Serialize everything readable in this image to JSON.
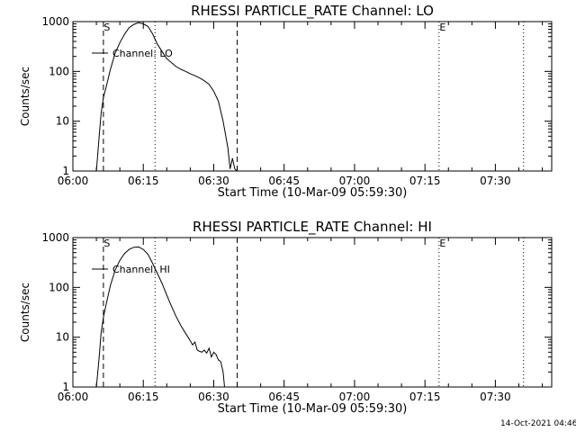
{
  "chart_data": [
    {
      "type": "line",
      "title": "RHESSI PARTICLE_RATE Channel: LO",
      "xlabel": "Start Time (10-Mar-09 05:59:30)",
      "ylabel": "Counts/sec",
      "y_scale": "log",
      "ylim": [
        1,
        1000
      ],
      "xlim": [
        "06:00",
        "07:42"
      ],
      "x_ticks": [
        "06:00",
        "06:15",
        "06:30",
        "06:45",
        "07:00",
        "07:15",
        "07:30"
      ],
      "y_ticks": [
        "1",
        "10",
        "100",
        "1000"
      ],
      "legend": {
        "label": "Channel: LO",
        "position": "top-left"
      },
      "markers": [
        {
          "time": "06:06.5",
          "label": "S",
          "style": "dashed"
        },
        {
          "time": "06:17.5",
          "label": "",
          "style": "dotted"
        },
        {
          "time": "06:35",
          "label": "",
          "style": "dashed"
        },
        {
          "time": "07:18",
          "label": "E",
          "style": "dotted"
        },
        {
          "time": "07:36",
          "label": "",
          "style": "dotted"
        }
      ],
      "series": [
        {
          "name": "Channel: LO",
          "x": [
            "06:05.0",
            "06:05.6",
            "06:06.0",
            "06:06.5",
            "06:07.0",
            "06:07.5",
            "06:08.0",
            "06:09.0",
            "06:10.0",
            "06:11.0",
            "06:12.0",
            "06:13.0",
            "06:14.0",
            "06:15.0",
            "06:16.0",
            "06:17.0",
            "06:18.0",
            "06:19.0",
            "06:20.0",
            "06:21.0",
            "06:22.0",
            "06:23.0",
            "06:24.0",
            "06:25.0",
            "06:26.0",
            "06:27.0",
            "06:28.0",
            "06:29.0",
            "06:30.0",
            "06:31.0",
            "06:32.0",
            "06:33.0",
            "06:33.5",
            "06:34.0",
            "06:34.5",
            "06:35.0"
          ],
          "y": [
            1,
            5,
            14,
            30,
            45,
            70,
            110,
            230,
            380,
            560,
            760,
            880,
            950,
            900,
            800,
            560,
            350,
            250,
            180,
            150,
            125,
            110,
            100,
            90,
            82,
            74,
            65,
            55,
            40,
            25,
            10,
            3,
            1.1,
            1.8,
            1.1,
            1
          ]
        }
      ]
    },
    {
      "type": "line",
      "title": "RHESSI PARTICLE_RATE Channel: HI",
      "xlabel": "Start Time (10-Mar-09 05:59:30)",
      "ylabel": "Counts/sec",
      "y_scale": "log",
      "ylim": [
        1,
        1000
      ],
      "xlim": [
        "06:00",
        "07:42"
      ],
      "x_ticks": [
        "06:00",
        "06:15",
        "06:30",
        "06:45",
        "07:00",
        "07:15",
        "07:30"
      ],
      "y_ticks": [
        "1",
        "10",
        "100",
        "1000"
      ],
      "legend": {
        "label": "Channel: HI",
        "position": "top-left"
      },
      "markers": [
        {
          "time": "06:06.5",
          "label": "S",
          "style": "dashed"
        },
        {
          "time": "06:17.5",
          "label": "",
          "style": "dotted"
        },
        {
          "time": "06:35",
          "label": "",
          "style": "dashed"
        },
        {
          "time": "07:18",
          "label": "E",
          "style": "dotted"
        },
        {
          "time": "07:36",
          "label": "",
          "style": "dotted"
        }
      ],
      "series": [
        {
          "name": "Channel: HI",
          "x": [
            "06:05.0",
            "06:05.6",
            "06:06.0",
            "06:06.5",
            "06:07.0",
            "06:08.0",
            "06:09.0",
            "06:10.0",
            "06:11.0",
            "06:12.0",
            "06:13.0",
            "06:14.0",
            "06:15.0",
            "06:16.0",
            "06:17.0",
            "06:18.0",
            "06:19.0",
            "06:20.0",
            "06:21.0",
            "06:22.0",
            "06:23.0",
            "06:24.0",
            "06:25.0",
            "06:25.5",
            "06:26.0",
            "06:26.5",
            "06:27.0",
            "06:27.5",
            "06:28.0",
            "06:28.5",
            "06:29.0",
            "06:29.5",
            "06:30.0",
            "06:30.5",
            "06:31.0",
            "06:31.5",
            "06:32.0",
            "06:32.3"
          ],
          "y": [
            1,
            4,
            12,
            25,
            42,
            110,
            220,
            350,
            480,
            580,
            640,
            650,
            580,
            460,
            300,
            190,
            120,
            70,
            42,
            26,
            17,
            12,
            8.5,
            7,
            8,
            5.5,
            5.2,
            5,
            5.5,
            4.8,
            6,
            4,
            5,
            4.5,
            3.5,
            3.2,
            2,
            1
          ]
        }
      ]
    }
  ],
  "footer": {
    "timestamp": "14-Oct-2021 04:46"
  }
}
